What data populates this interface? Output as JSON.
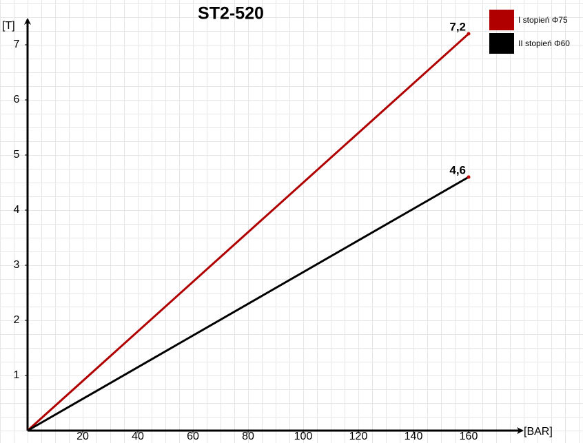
{
  "chart_data": {
    "type": "line",
    "title": "ST2-520",
    "x_label": "[BAR]",
    "y_label": "[T]",
    "x": [
      0,
      160
    ],
    "series": [
      {
        "name": "I stopień Φ75",
        "color": "#b00000",
        "values": [
          0,
          7.2
        ],
        "value_labels": [
          null,
          "7,2"
        ]
      },
      {
        "name": "II stopień Φ60",
        "color": "#000000",
        "values": [
          0,
          4.6
        ],
        "value_labels": [
          null,
          "4,6"
        ]
      }
    ],
    "marker_color": "#c00000",
    "xlim": [
      0,
      180
    ],
    "ylim": [
      0,
      7.45
    ],
    "xticks": [
      20,
      40,
      60,
      80,
      100,
      120,
      140,
      160
    ],
    "yticks": [
      1,
      2,
      3,
      4,
      5,
      6,
      7
    ],
    "legend": "top-right"
  }
}
